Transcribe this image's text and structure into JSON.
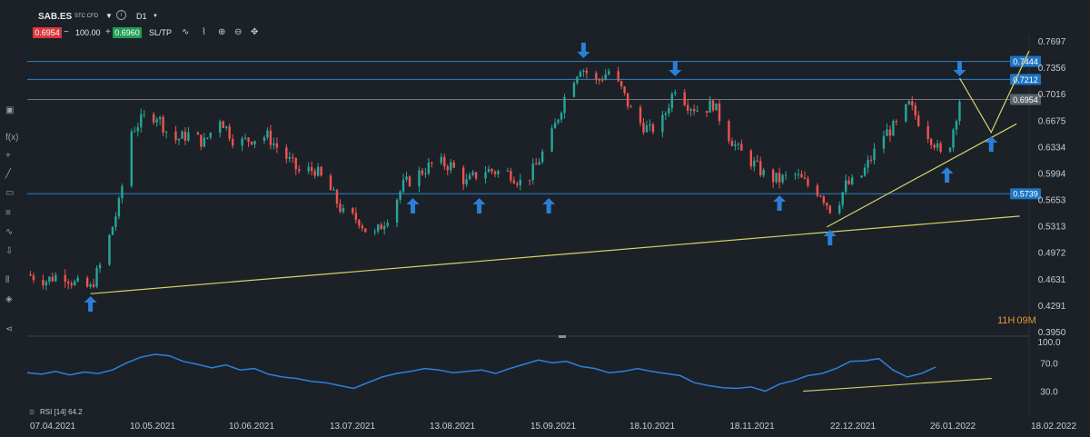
{
  "header": {
    "symbol": "SAB.ES",
    "symbol_type": "STC CFD",
    "timeframe": "D1",
    "sell_price": "0.6954",
    "quantity": "100.00",
    "buy_price": "0.6960",
    "sltp_label": "SL/TP",
    "minus": "−",
    "plus": "+"
  },
  "timer": {
    "hours": "11",
    "h_unit": "H",
    "minutes": "09",
    "m_unit": "M"
  },
  "sidebar_icons": [
    "layout-icon",
    "function-icon",
    "crosshair-icon",
    "pencil-icon",
    "rectangle-icon",
    "fibonacci-icon",
    "pattern-icon",
    "brush-icon",
    "magnet-icon",
    "layers-icon",
    "share-icon"
  ],
  "colors": {
    "bg": "#1c2127",
    "up": "#26a69a",
    "down": "#ef5350",
    "hline": "#2a83c7",
    "trend": "#d6d36a",
    "arrow": "#2b7fd6",
    "rsi": "#2f7fe0",
    "tag": "#1d75c2",
    "price_tag": "#5b6168",
    "grid": "#262c33",
    "text": "#c8ccd2"
  },
  "chart_data": [
    {
      "type": "candlestick",
      "y_range": [
        0.395,
        0.7697
      ],
      "y_ticks": [
        "0.7697",
        "0.7356",
        "0.7016",
        "0.6675",
        "0.6334",
        "0.5994",
        "0.5653",
        "0.5313",
        "0.4972",
        "0.4631",
        "0.4291",
        "0.3950"
      ],
      "x_range": [
        "2021-04-07",
        "2022-02-18"
      ],
      "x_ticks": [
        "07.04.2021",
        "10.05.2021",
        "10.06.2021",
        "13.07.2021",
        "13.08.2021",
        "15.09.2021",
        "18.10.2021",
        "18.11.2021",
        "22.12.2021",
        "26.01.2022",
        "18.02.2022"
      ],
      "path": [
        [
          "2021-04-07",
          0.47
        ],
        [
          "2021-04-13",
          0.462
        ],
        [
          "2021-04-18",
          0.472
        ],
        [
          "2021-04-22",
          0.458
        ],
        [
          "2021-04-27",
          0.452
        ],
        [
          "2021-05-01",
          0.49
        ],
        [
          "2021-05-06",
          0.56
        ],
        [
          "2021-05-10",
          0.655
        ],
        [
          "2021-05-14",
          0.672
        ],
        [
          "2021-05-18",
          0.675
        ],
        [
          "2021-05-23",
          0.642
        ],
        [
          "2021-05-28",
          0.65
        ],
        [
          "2021-06-02",
          0.64
        ],
        [
          "2021-06-07",
          0.672
        ],
        [
          "2021-06-12",
          0.638
        ],
        [
          "2021-06-17",
          0.645
        ],
        [
          "2021-06-22",
          0.648
        ],
        [
          "2021-06-27",
          0.625
        ],
        [
          "2021-07-02",
          0.602
        ],
        [
          "2021-07-07",
          0.605
        ],
        [
          "2021-07-12",
          0.578
        ],
        [
          "2021-07-16",
          0.548
        ],
        [
          "2021-07-21",
          0.54
        ],
        [
          "2021-07-25",
          0.515
        ],
        [
          "2021-07-30",
          0.545
        ],
        [
          "2021-08-04",
          0.585
        ],
        [
          "2021-08-09",
          0.6
        ],
        [
          "2021-08-14",
          0.615
        ],
        [
          "2021-08-19",
          0.61
        ],
        [
          "2021-08-24",
          0.588
        ],
        [
          "2021-08-29",
          0.605
        ],
        [
          "2021-09-03",
          0.602
        ],
        [
          "2021-09-07",
          0.6
        ],
        [
          "2021-09-11",
          0.585
        ],
        [
          "2021-09-15",
          0.61
        ],
        [
          "2021-09-20",
          0.65
        ],
        [
          "2021-09-25",
          0.71
        ],
        [
          "2021-09-29",
          0.738
        ],
        [
          "2021-10-04",
          0.718
        ],
        [
          "2021-10-08",
          0.732
        ],
        [
          "2021-10-12",
          0.708
        ],
        [
          "2021-10-16",
          0.672
        ],
        [
          "2021-10-21",
          0.655
        ],
        [
          "2021-10-25",
          0.668
        ],
        [
          "2021-10-29",
          0.712
        ],
        [
          "2021-11-02",
          0.69
        ],
        [
          "2021-11-06",
          0.68
        ],
        [
          "2021-11-10",
          0.69
        ],
        [
          "2021-11-14",
          0.655
        ],
        [
          "2021-11-18",
          0.63
        ],
        [
          "2021-11-23",
          0.612
        ],
        [
          "2021-11-27",
          0.595
        ],
        [
          "2021-12-01",
          0.592
        ],
        [
          "2021-12-06",
          0.598
        ],
        [
          "2021-12-10",
          0.585
        ],
        [
          "2021-12-14",
          0.575
        ],
        [
          "2021-12-18",
          0.548
        ],
        [
          "2021-12-22",
          0.585
        ],
        [
          "2021-12-26",
          0.59
        ],
        [
          "2021-12-30",
          0.62
        ],
        [
          "2022-01-03",
          0.65
        ],
        [
          "2022-01-07",
          0.662
        ],
        [
          "2022-01-11",
          0.688
        ],
        [
          "2022-01-15",
          0.662
        ],
        [
          "2022-01-19",
          0.64
        ],
        [
          "2022-01-22",
          0.615
        ],
        [
          "2022-01-24",
          0.64
        ],
        [
          "2022-01-27",
          0.695
        ]
      ],
      "horizontal_levels": [
        {
          "value": 0.7444,
          "label": "0.7444"
        },
        {
          "value": 0.7212,
          "label": "0.7212"
        },
        {
          "value": 0.6954,
          "label": "0.6954"
        },
        {
          "value": 0.5739,
          "label": "0.5739"
        }
      ],
      "trendlines": [
        [
          [
            "2021-04-27",
            0.445
          ],
          [
            "2022-02-15",
            0.545
          ]
        ],
        [
          [
            "2021-12-16",
            0.531
          ],
          [
            "2022-02-14",
            0.664
          ]
        ],
        [
          [
            "2022-01-27",
            0.723
          ],
          [
            "2022-02-06",
            0.653
          ],
          [
            "2022-02-18",
            0.758
          ]
        ]
      ],
      "up_arrows": [
        "2021-04-27",
        "2021-08-07",
        "2021-08-28",
        "2021-09-19",
        "2021-12-01",
        "2021-12-17",
        "2022-01-23",
        "2022-02-06"
      ],
      "down_arrows": [
        "2021-09-30",
        "2021-10-29",
        "2022-01-27"
      ]
    },
    {
      "type": "line",
      "indicator": "RSI [14] 64.2",
      "y_range": [
        0,
        100
      ],
      "y_ticks": [
        "100.0",
        "70.0",
        "30.0"
      ],
      "values": [
        56,
        54,
        58,
        53,
        57,
        55,
        60,
        70,
        78,
        82,
        80,
        72,
        68,
        63,
        67,
        60,
        62,
        54,
        50,
        48,
        44,
        42,
        38,
        34,
        42,
        50,
        55,
        58,
        62,
        60,
        56,
        58,
        60,
        55,
        62,
        68,
        74,
        70,
        72,
        65,
        62,
        56,
        58,
        62,
        58,
        55,
        52,
        42,
        38,
        35,
        34,
        36,
        30,
        40,
        45,
        52,
        55,
        62,
        72,
        73,
        76,
        60,
        50,
        55,
        64
      ],
      "trendline": [
        [
          0.72,
          30
        ],
        [
          0.91,
          48
        ]
      ]
    }
  ]
}
